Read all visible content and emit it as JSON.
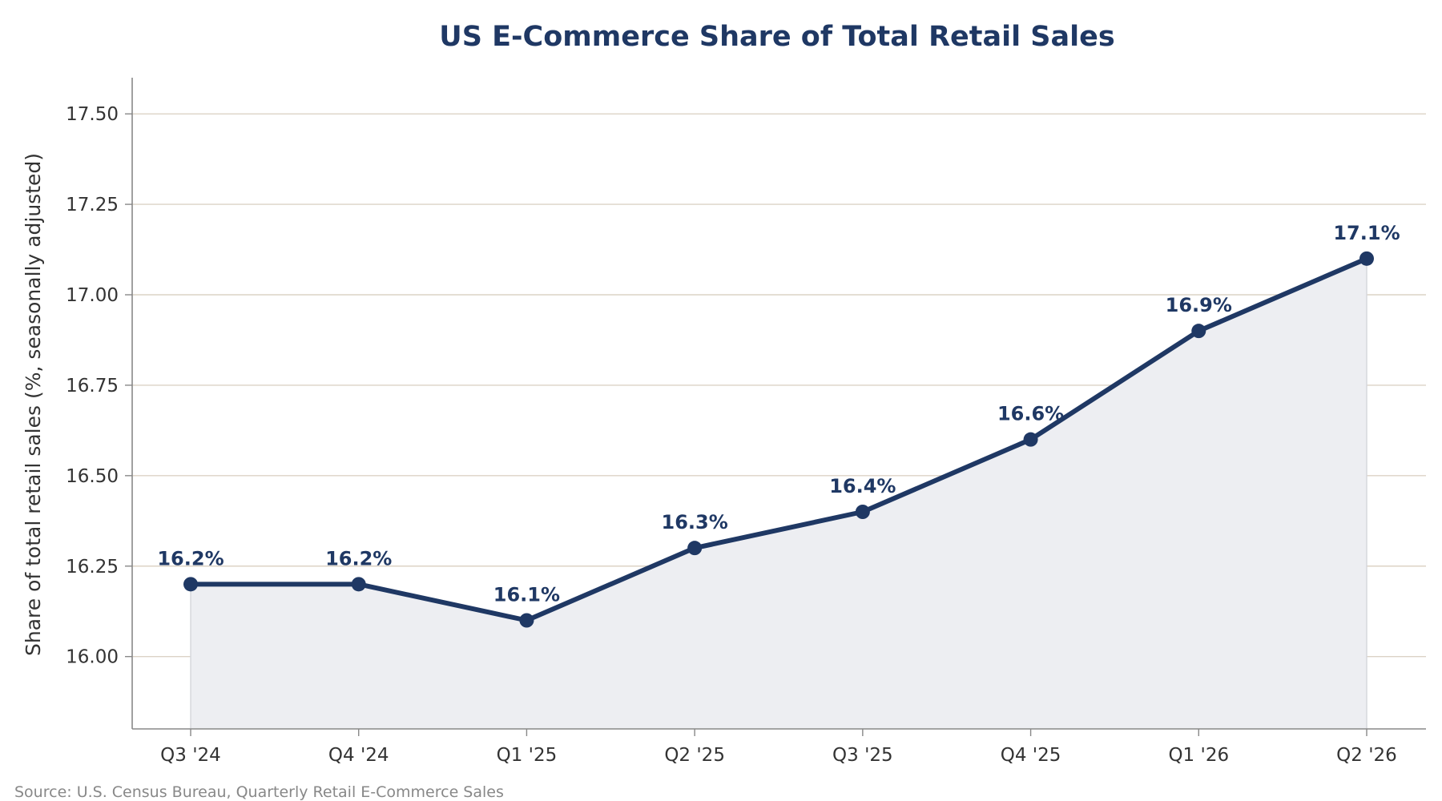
{
  "chart_data": {
    "type": "line",
    "title": "US E-Commerce Share of Total Retail Sales",
    "xlabel": "",
    "ylabel": "Share of total retail sales (%, seasonally adjusted)",
    "categories": [
      "Q3 '24",
      "Q4 '24",
      "Q1 '25",
      "Q2 '25",
      "Q3 '25",
      "Q4 '25",
      "Q1 '26",
      "Q2 '26"
    ],
    "values": [
      16.2,
      16.2,
      16.1,
      16.3,
      16.4,
      16.6,
      16.9,
      17.1
    ],
    "data_labels": [
      "16.2%",
      "16.2%",
      "16.1%",
      "16.3%",
      "16.4%",
      "16.6%",
      "16.9%",
      "17.1%"
    ],
    "ylim": [
      15.8,
      17.6
    ],
    "yticks": [
      16.0,
      16.25,
      16.5,
      16.75,
      17.0,
      17.25,
      17.5
    ],
    "ytick_labels": [
      "16.00",
      "16.25",
      "16.50",
      "16.75",
      "17.00",
      "17.25",
      "17.50"
    ],
    "grid": "horizontal",
    "legend": "none",
    "area_fill": true,
    "colors": {
      "line": "#1f3864",
      "area": "#edeef2",
      "grid": "#dcd3c6",
      "axis": "#888888",
      "title": "#1f3864",
      "text": "#333333"
    }
  },
  "footer": {
    "source": "Source: U.S. Census Bureau, Quarterly Retail E-Commerce Sales"
  }
}
